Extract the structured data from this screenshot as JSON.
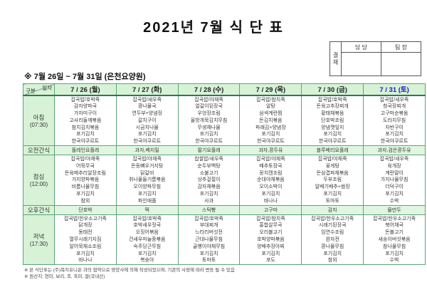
{
  "title": "2021년 7월 식 단 표",
  "approval": {
    "stamp_label": "결재",
    "columns": [
      "담 당",
      "팀 장"
    ]
  },
  "subtitle": "※ 7월 26일 ~ 7월 31일 (은천요양원)",
  "table": {
    "corner": {
      "top": "일자",
      "bottom": "구분"
    },
    "columns": [
      "7 / 26 (월)",
      "7 / 27 (화)",
      "7 / 28 (수)",
      "7 / 29 (목)",
      "7 / 30 (금)",
      "7 / 31 (토)"
    ],
    "rows": [
      {
        "id": "breakfast",
        "label": "아침",
        "time": "(07:30)",
        "type": "meal",
        "cells": [
          [
            "잡곡밥/호박죽",
            "감자양파국",
            "가자미구이",
            "고사리들깨볶음",
            "참치김치볶음",
            "포기김치",
            "한국야쿠르트"
          ],
          [
            "잡곡밥/새우죽",
            "콩나물국",
            "연두부+양념장",
            "갈치구이",
            "시금치나물",
            "포기김치",
            "한국야쿠르트"
          ],
          [
            "잡곡밥/야채죽",
            "얼갈이된장국",
            "우엉장조림",
            "올방개묵김치무침",
            "무생채나물",
            "포기김치",
            "한국야쿠르트"
          ],
          [
            "잡곡밥/참치죽",
            "알탕",
            "삼색계란찜",
            "돈김치볶음",
            "파래김+양념장",
            "포기김치",
            "한국야쿠르트"
          ],
          [
            "잡곡밥/호박죽",
            "돈육고추장찌개",
            "황태채볶음",
            "단호박조림",
            "양념깻잎지",
            "포기김치",
            "한국야쿠르트"
          ],
          [
            "잡곡밥/새우죽",
            "청국장찌개",
            "고구마순볶음",
            "도라지무침",
            "자반구이",
            "포기김치",
            "한국야쿠르트"
          ]
        ]
      },
      {
        "id": "morning-snack",
        "label": "오전간식",
        "type": "snack",
        "cells": [
          "플레인요플레",
          "과자,베지밀",
          "딸기요플레",
          "과자,콩두유",
          "블루베리요플레",
          "과자,검은콩두유"
        ]
      },
      {
        "id": "lunch",
        "label": "점심",
        "time": "(12:00)",
        "type": "meal",
        "cells": [
          [
            "잡곡밥/야채죽",
            "어묵무국",
            "돈육메추리알장조림",
            "가지양파볶음",
            "비름나물무침",
            "포기김치",
            "참외"
          ],
          [
            "잡곡밥/야채죽",
            "돈등뼈우거지탕",
            "닭갈비",
            "취나물들기름볶음",
            "오이양파무침",
            "포기김치",
            "파인애플"
          ],
          [
            "찹쌀밥/새우죽",
            "순두부백탕",
            "소불고기",
            "상추겉절이",
            "감자채볶음",
            "포기김치",
            "사과"
          ],
          [
            "잡곡밥/야채죽",
            "배추토장국",
            "꽁치캔조림",
            "순대야채볶음",
            "오이소박이",
            "포기김치",
            "바나나"
          ],
          [
            "잡곡밥/야채죽",
            "꽃게탕",
            "돈삼겹파채볶음",
            "두부조림",
            "알배기배추+쌈장",
            "포기김치",
            "토마토"
          ],
          [
            "잡곡밥/새우죽",
            "육개장",
            "계란말이",
            "가지나물무침",
            "더덕구이",
            "포기김치",
            "수박"
          ]
        ]
      },
      {
        "id": "afternoon-snack",
        "label": "오후간식",
        "type": "snack",
        "cells": [
          "단호박",
          "떡",
          "스틱빵",
          "고구마",
          "감자",
          "물만두"
        ]
      },
      {
        "id": "dinner",
        "label": "저녁",
        "time": "(17:30)",
        "type": "meal",
        "cells": [
          [
            "잡곡밥/한우소고기죽",
            "닭개장",
            "동태전",
            "열무시래기지짐",
            "알어묵채소조림",
            "포기김치",
            "바나나"
          ],
          [
            "잡곡밥/호박죽",
            "호박새우젓국",
            "오징어볶음",
            "건새우마늘종볶음",
            "숙주당근무침",
            "포기김치",
            "복숭아"
          ],
          [
            "잡곡밥/호박죽",
            "부대찌개",
            "느타리버섯전",
            "근대나물무침",
            "골뱅이야채무침",
            "포기김치",
            "토마토"
          ],
          [
            "잡곡밥/참치죽",
            "홍합살무국",
            "오리불고기",
            "호박양파볶음",
            "양배추장아찌",
            "포기김치",
            "포도"
          ],
          [
            "잡곡밥/한우소고기죽",
            "시래기된장국",
            "임연수조림",
            "완자전",
            "콩나물무침",
            "포기김치",
            "참외"
          ],
          [
            "잡곡밥/한우소고기죽",
            "북어채국",
            "돈불고기",
            "새송이버섯볶음",
            "참나물무침",
            "포기김치",
            "수박"
          ]
        ]
      }
    ]
  },
  "footnotes": [
    "※ 본 식단표는 (주)복지유니온 과의 협약으로 영양사에 의해 작성되었으며, 기관의 사정에 따라 변동 될 수 있음",
    "※ 원산지: 현미, 보리, 조, 흑미, 쌀(국내산)"
  ],
  "colors": {
    "table_border": "#5aa578",
    "table_border_dark": "#2c7a4c",
    "header_bg": "#d7f2d7",
    "snack_row_bg": "#e1f6e1",
    "saturday_blue": "#1717cc"
  }
}
